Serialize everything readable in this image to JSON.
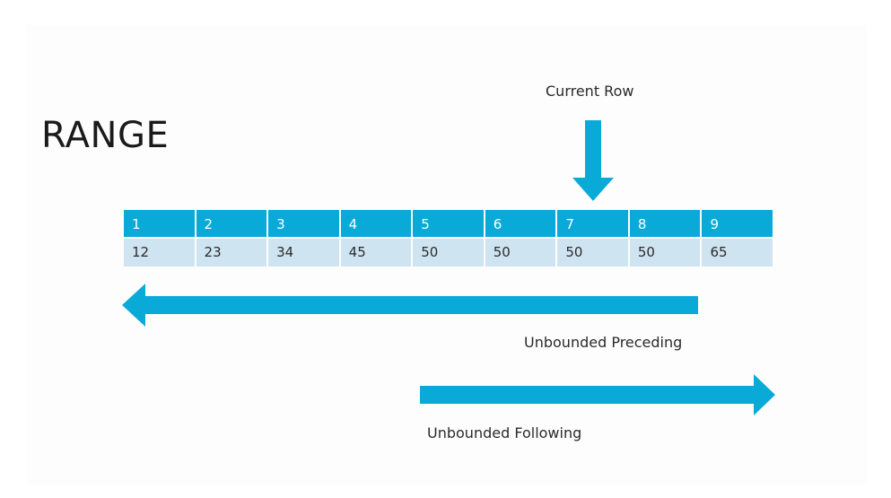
{
  "title": "RANGE",
  "current_row_label": "Current Row",
  "unbounded_preceding_label": "Unbounded Preceding",
  "unbounded_following_label": "Unbounded Following",
  "row_numbers": [
    "1",
    "2",
    "3",
    "4",
    "5",
    "6",
    "7",
    "8",
    "9"
  ],
  "row_values": [
    "12",
    "23",
    "34",
    "45",
    "50",
    "50",
    "50",
    "50",
    "65"
  ],
  "colors": {
    "accent": "#0aaad8",
    "value_row": "#cfe4f1"
  }
}
